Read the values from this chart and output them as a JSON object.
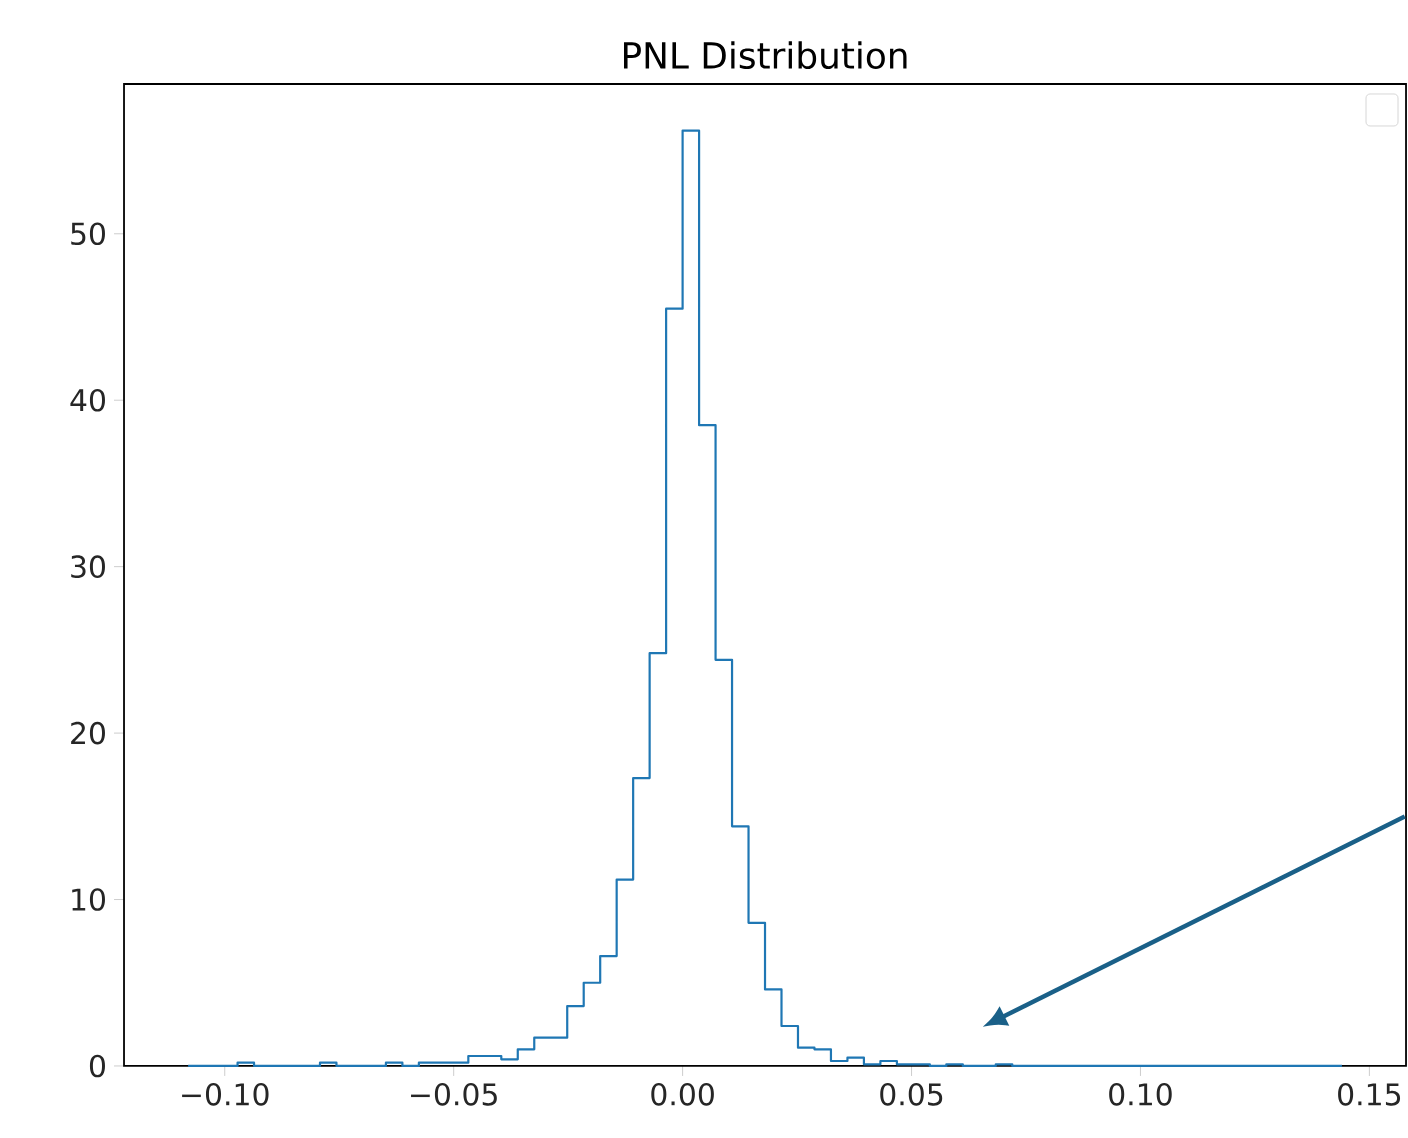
{
  "chart_data": {
    "type": "histogram",
    "title": "PNL Distribution",
    "bins": [
      -0.108,
      -0.1044,
      -0.1008,
      -0.0972,
      -0.0936,
      -0.09,
      -0.0864,
      -0.0828,
      -0.0792,
      -0.0756,
      -0.072,
      -0.0684,
      -0.0648,
      -0.0612,
      -0.0576,
      -0.054,
      -0.0504,
      -0.0468,
      -0.0432,
      -0.0396,
      -0.036,
      -0.0324,
      -0.0288,
      -0.0252,
      -0.0216,
      -0.018,
      -0.0144,
      -0.0108,
      -0.0072,
      -0.0036,
      0,
      0.0036,
      0.0072,
      0.0108,
      0.0144,
      0.018,
      0.0216,
      0.0252,
      0.0288,
      0.0324,
      0.036,
      0.0396,
      0.0432,
      0.0468,
      0.0504,
      0.054,
      0.0576,
      0.0612,
      0.0648,
      0.0684,
      0.072,
      0.0756,
      0.0792,
      0.0828,
      0.0864,
      0.09,
      0.0936,
      0.0972,
      0.1008,
      0.1044,
      0.108,
      0.1116,
      0.1152,
      0.1188,
      0.1224,
      0.126,
      0.1296,
      0.1332,
      0.1368,
      0.1404,
      0.144
    ],
    "values": [
      0,
      0,
      0,
      0.2,
      0,
      0,
      0,
      0,
      0.2,
      0,
      0,
      0,
      0.2,
      0,
      0.2,
      0.2,
      0.2,
      0.6,
      0.6,
      0.4,
      1.0,
      1.7,
      1.7,
      3.6,
      5.0,
      6.6,
      11.2,
      17.3,
      24.8,
      45.5,
      56.2,
      38.5,
      24.4,
      14.4,
      8.6,
      4.6,
      2.4,
      1.1,
      1.0,
      0.3,
      0.5,
      0.1,
      0.3,
      0.1,
      0.1,
      0,
      0.1,
      0,
      0,
      0.1,
      0,
      0,
      0,
      0,
      0,
      0,
      0,
      0,
      0,
      0,
      0,
      0,
      0,
      0,
      0,
      0,
      0,
      0,
      0,
      0
    ],
    "color": "#1f77b4",
    "xlim": [
      -0.122,
      0.158
    ],
    "ylim": [
      0,
      59
    ],
    "xticks": [
      {
        "value": -0.1,
        "label": "−0.10"
      },
      {
        "value": -0.05,
        "label": "−0.05"
      },
      {
        "value": 0,
        "label": "0.00"
      },
      {
        "value": 0.05,
        "label": "0.05"
      },
      {
        "value": 0.1,
        "label": "0.10"
      },
      {
        "value": 0.15,
        "label": "0.15"
      }
    ],
    "yticks": [
      0,
      10,
      20,
      30,
      40,
      50
    ]
  }
}
